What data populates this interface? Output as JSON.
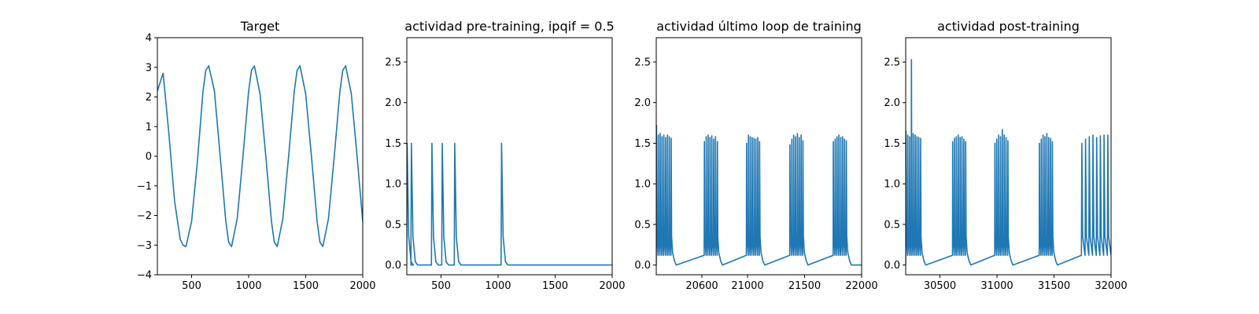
{
  "chart_data": [
    {
      "type": "line",
      "title": "Target",
      "xlim": [
        200,
        2000
      ],
      "ylim": [
        -4,
        4
      ],
      "xticks": [
        500,
        1000,
        1500,
        2000
      ],
      "yticks": [
        -4,
        -3,
        -2,
        -1,
        0,
        1,
        2,
        3,
        4
      ],
      "grid": false,
      "color": "#1f77b4",
      "series": [
        {
          "x": [
            200,
            250,
            300,
            350,
            400,
            425,
            450,
            500,
            550,
            600,
            625,
            650,
            700,
            750,
            800,
            825,
            850,
            900,
            950,
            1000,
            1025,
            1050,
            1100,
            1150,
            1200,
            1225,
            1250,
            1300,
            1350,
            1400,
            1425,
            1450,
            1500,
            1550,
            1600,
            1625,
            1650,
            1700,
            1750,
            1800,
            1825,
            1850,
            1900,
            1950,
            2000
          ],
          "y": [
            2.2,
            2.8,
            0.8,
            -1.5,
            -2.8,
            -3.0,
            -3.05,
            -2.2,
            -0.2,
            2.2,
            2.9,
            3.05,
            2.2,
            0.0,
            -2.2,
            -2.9,
            -3.05,
            -2.1,
            0.0,
            2.2,
            2.9,
            3.05,
            2.1,
            0.0,
            -2.2,
            -2.9,
            -3.05,
            -2.1,
            0.0,
            2.2,
            2.9,
            3.05,
            2.1,
            0.0,
            -2.2,
            -2.9,
            -3.05,
            -2.1,
            0.0,
            2.2,
            2.9,
            3.05,
            2.1,
            0.0,
            -2.2
          ]
        }
      ]
    },
    {
      "type": "line",
      "title": "actividad pre-training, ipqif = 0.5",
      "xlim": [
        200,
        2000
      ],
      "ylim": [
        -0.12,
        2.8
      ],
      "xticks": [
        500,
        1000,
        1500,
        2000
      ],
      "yticks": [
        0.0,
        0.5,
        1.0,
        1.5,
        2.0,
        2.5
      ],
      "grid": false,
      "color": "#1f77b4",
      "baseline": 0.0,
      "spikes": [
        {
          "x": 203,
          "y": 1.5
        },
        {
          "x": 240,
          "y": 1.5
        },
        {
          "x": 420,
          "y": 1.5
        },
        {
          "x": 510,
          "y": 1.5
        },
        {
          "x": 620,
          "y": 1.5
        },
        {
          "x": 1030,
          "y": 1.5
        }
      ]
    },
    {
      "type": "line",
      "title": "actividad último loop de training",
      "xlim": [
        20200,
        22000
      ],
      "ylim": [
        -0.12,
        2.8
      ],
      "xticks": [
        20600,
        21000,
        21500,
        22000
      ],
      "yticks": [
        0.0,
        0.5,
        1.0,
        1.5,
        2.0,
        2.5
      ],
      "grid": false,
      "color": "#1f77b4",
      "baseline": 0.0,
      "bursts": [
        {
          "start": 20200,
          "end": 20345,
          "peaks": [
            1.72,
            1.6,
            1.62,
            1.58,
            1.6,
            1.57,
            1.6,
            1.58,
            1.56
          ]
        },
        {
          "start": 20620,
          "end": 20750,
          "peaks": [
            1.52,
            1.58,
            1.6,
            1.57,
            1.59,
            1.55,
            1.58,
            1.52
          ]
        },
        {
          "start": 20990,
          "end": 21120,
          "peaks": [
            1.5,
            1.6,
            1.58,
            1.57,
            1.56,
            1.55,
            1.57,
            1.52
          ]
        },
        {
          "start": 21370,
          "end": 21500,
          "peaks": [
            1.48,
            1.55,
            1.6,
            1.58,
            1.62,
            1.57,
            1.6,
            1.53
          ]
        },
        {
          "start": 21750,
          "end": 21880,
          "peaks": [
            1.52,
            1.55,
            1.58,
            1.6,
            1.57,
            1.58,
            1.55,
            1.53
          ]
        }
      ]
    },
    {
      "type": "line",
      "title": "actividad post-training",
      "xlim": [
        30200,
        32000
      ],
      "ylim": [
        -0.12,
        2.8
      ],
      "xticks": [
        30500,
        31000,
        31500,
        32000
      ],
      "yticks": [
        0.0,
        0.5,
        1.0,
        1.5,
        2.0,
        2.5
      ],
      "grid": false,
      "color": "#1f77b4",
      "baseline": 0.0,
      "bursts": [
        {
          "start": 30200,
          "end": 30345,
          "peaks": [
            1.65,
            1.6,
            1.58,
            2.53,
            1.62,
            1.6,
            1.58,
            1.57,
            1.56
          ]
        },
        {
          "start": 30610,
          "end": 30740,
          "peaks": [
            1.52,
            1.56,
            1.58,
            1.6,
            1.57,
            1.58,
            1.55,
            1.52
          ]
        },
        {
          "start": 30980,
          "end": 31110,
          "peaks": [
            1.5,
            1.55,
            1.6,
            1.58,
            1.67,
            1.6,
            1.57,
            1.53
          ]
        },
        {
          "start": 31370,
          "end": 31500,
          "peaks": [
            1.5,
            1.55,
            1.6,
            1.58,
            1.62,
            1.57,
            1.56,
            1.52
          ]
        },
        {
          "start": 31740,
          "end": 32000,
          "peaks": [
            1.5,
            1.55,
            1.58,
            1.6,
            1.57,
            1.59,
            1.6,
            1.6
          ]
        }
      ]
    }
  ]
}
